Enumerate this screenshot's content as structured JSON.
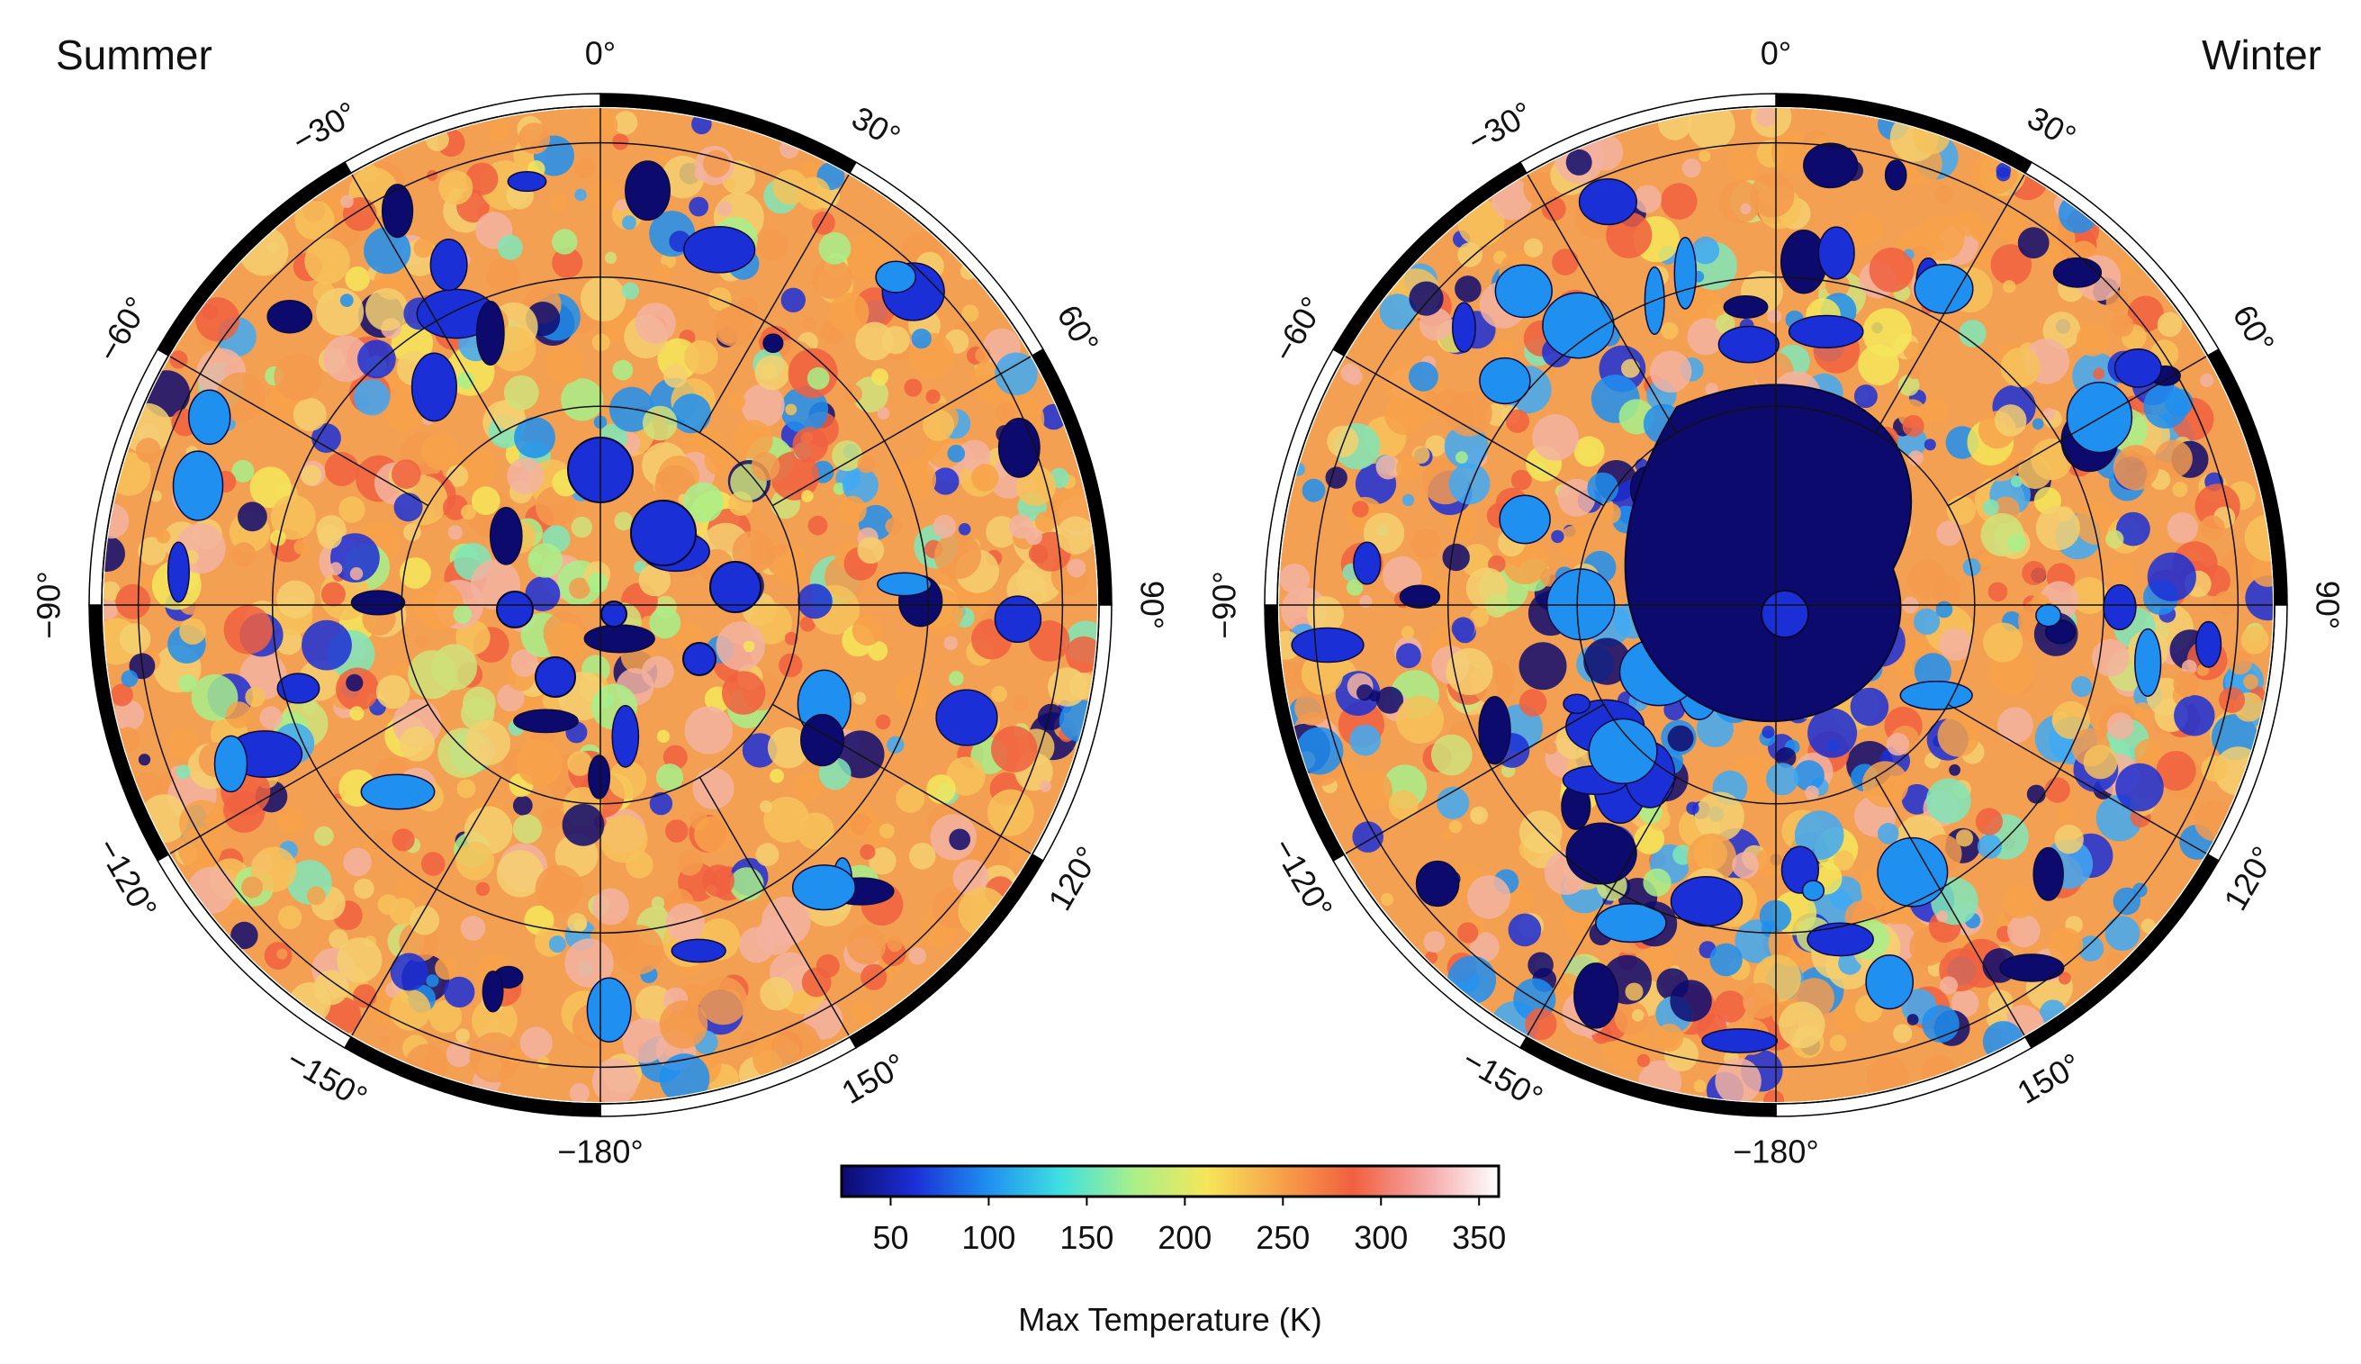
{
  "panels": [
    {
      "title": "Summer"
    },
    {
      "title": "Winter"
    }
  ],
  "longitude_labels": [
    "0°",
    "30°",
    "60°",
    "90°",
    "120°",
    "150°",
    "−180°",
    "−150°",
    "−120°",
    "−90°",
    "−60°",
    "−30°"
  ],
  "colorbar": {
    "label": "Max Temperature (K)",
    "min": 25,
    "max": 360,
    "ticks": [
      "50",
      "100",
      "150",
      "200",
      "250",
      "300",
      "350"
    ],
    "tick_values": [
      50,
      100,
      150,
      200,
      250,
      300,
      350
    ],
    "colors": [
      "#0d0a6e",
      "#1b2fd6",
      "#1f8ff0",
      "#3fe0e0",
      "#a8f08a",
      "#f5e65a",
      "#f7a24a",
      "#f0603f",
      "#f5a6a6",
      "#ffffff"
    ]
  },
  "map_colors": {
    "warm": [
      "#f7a24a",
      "#f39a4e",
      "#f0603f",
      "#f6c25a",
      "#f5d070",
      "#f3b3a0"
    ],
    "mid": [
      "#a8f08a",
      "#cfe27a",
      "#7fe6b8",
      "#f5e65a"
    ],
    "cold": [
      "#1f8ff0",
      "#1b2fd6",
      "#0d0a6e",
      "#3fa9f5"
    ]
  }
}
